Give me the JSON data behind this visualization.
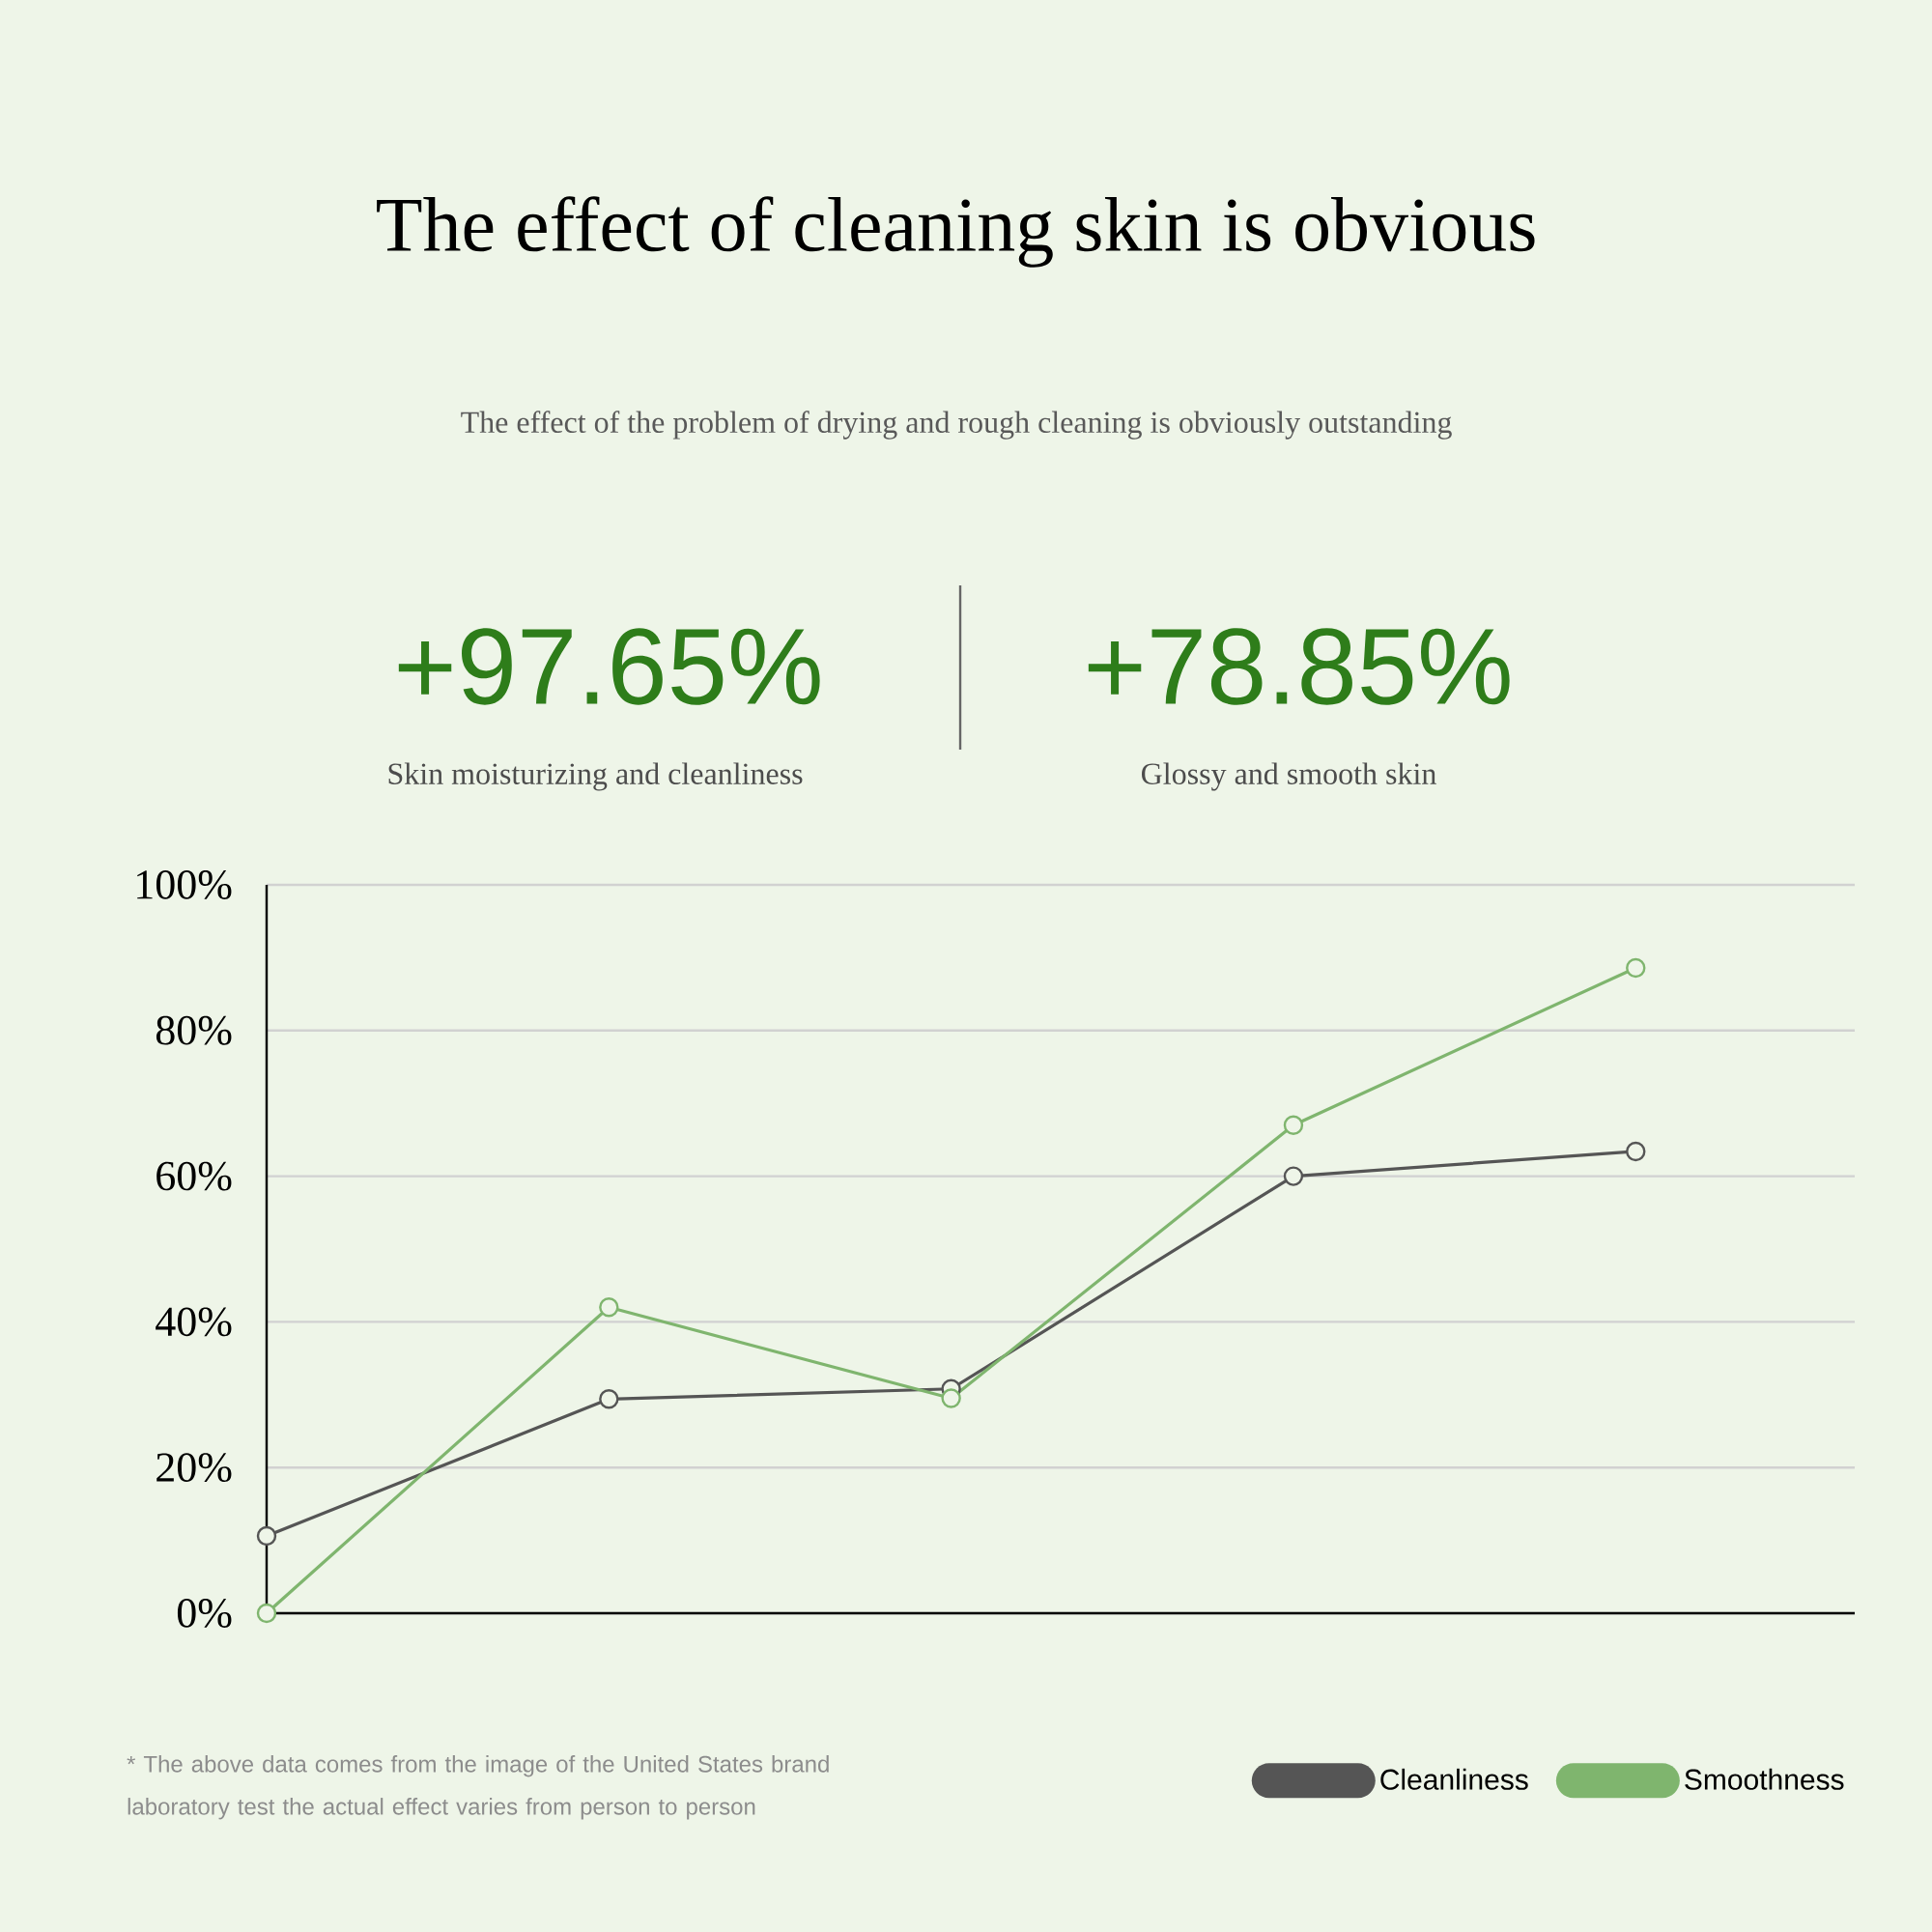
{
  "chart_data": {
    "type": "line",
    "title": "The effect of cleaning skin is obvious",
    "subtitle": "The effect of the problem of drying and rough cleaning is obviously outstanding",
    "annotations": [
      "+97.65%",
      "Skin moisturizing and cleanliness",
      "+78.85%",
      "Glossy and smooth skin",
      "* The above data comes from the image of the United States brand laboratory test the actual effect varies from person to person"
    ],
    "categories": [
      null,
      null,
      null,
      null,
      null
    ],
    "series": [
      {
        "name": "Cleanliness",
        "color": "#555555",
        "values": [
          10.6,
          29.4,
          30.8,
          60,
          63.4
        ]
      },
      {
        "name": "Smoothness",
        "color": "#7fb56e",
        "values": [
          0,
          42,
          29.5,
          67,
          88.6
        ]
      }
    ],
    "ylim": [
      0,
      100
    ],
    "yticks": [
      {
        "value": 0,
        "label": "0%"
      },
      {
        "value": 20,
        "label": "20%"
      },
      {
        "value": 40,
        "label": "40%"
      },
      {
        "value": 60,
        "label": "60%"
      },
      {
        "value": 80,
        "label": "80%"
      },
      {
        "value": 100,
        "label": "100%"
      }
    ],
    "tick_labels": "y",
    "grid": "y",
    "legend": "bottom right",
    "marker": "circle",
    "line_style": "solid"
  }
}
